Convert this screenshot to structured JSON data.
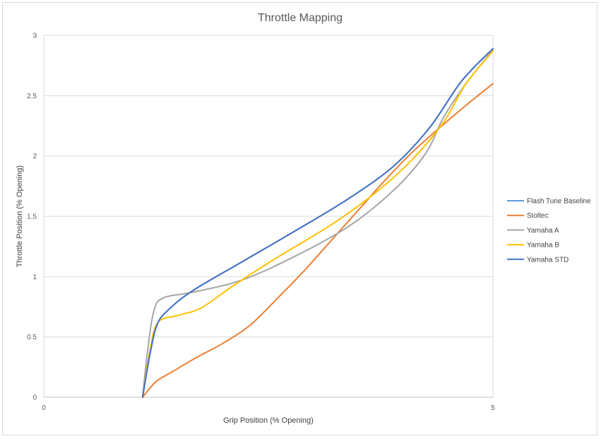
{
  "chart_data": {
    "type": "line",
    "title": "Throttle Mapping",
    "xlabel": "Grip Position (% Opening)",
    "ylabel": "Throttle Position (% Opening)",
    "xlim": [
      0,
      5
    ],
    "ylim": [
      0,
      3
    ],
    "x_ticks": [
      "0",
      "5"
    ],
    "y_ticks": [
      "0",
      "0.5",
      "1",
      "1.5",
      "2",
      "2.5",
      "3"
    ],
    "grid": "horizontal",
    "legend_position": "right",
    "series": [
      {
        "name": "Flash Tune Baseline",
        "color": "#5b9bd5",
        "points": [
          [
            1.1,
            0
          ],
          [
            1.18,
            0.35
          ],
          [
            1.26,
            0.6
          ],
          [
            1.38,
            0.72
          ],
          [
            1.65,
            0.88
          ],
          [
            2.2,
            1.12
          ],
          [
            2.8,
            1.38
          ],
          [
            3.4,
            1.65
          ],
          [
            3.9,
            1.92
          ],
          [
            4.3,
            2.24
          ],
          [
            4.65,
            2.62
          ],
          [
            5.0,
            2.89
          ]
        ]
      },
      {
        "name": "Stoltec",
        "color": "#ed7d31",
        "points": [
          [
            1.1,
            0
          ],
          [
            1.25,
            0.13
          ],
          [
            1.45,
            0.22
          ],
          [
            1.7,
            0.33
          ],
          [
            2.0,
            0.45
          ],
          [
            2.3,
            0.6
          ],
          [
            2.6,
            0.82
          ],
          [
            2.9,
            1.05
          ],
          [
            3.2,
            1.3
          ],
          [
            3.5,
            1.55
          ],
          [
            3.8,
            1.8
          ],
          [
            4.1,
            2.03
          ],
          [
            4.4,
            2.23
          ],
          [
            4.7,
            2.42
          ],
          [
            5.0,
            2.6
          ]
        ]
      },
      {
        "name": "Yamaha A",
        "color": "#a5a5a5",
        "points": [
          [
            1.1,
            0
          ],
          [
            1.15,
            0.35
          ],
          [
            1.22,
            0.7
          ],
          [
            1.32,
            0.82
          ],
          [
            1.65,
            0.87
          ],
          [
            2.2,
            0.97
          ],
          [
            2.8,
            1.17
          ],
          [
            3.4,
            1.42
          ],
          [
            3.9,
            1.72
          ],
          [
            4.25,
            2.02
          ],
          [
            4.45,
            2.32
          ],
          [
            4.7,
            2.6
          ],
          [
            5.0,
            2.88
          ]
        ]
      },
      {
        "name": "Yamaha B",
        "color": "#ffc000",
        "points": [
          [
            1.1,
            0
          ],
          [
            1.18,
            0.38
          ],
          [
            1.27,
            0.62
          ],
          [
            1.5,
            0.68
          ],
          [
            1.75,
            0.74
          ],
          [
            2.1,
            0.92
          ],
          [
            2.6,
            1.16
          ],
          [
            3.2,
            1.43
          ],
          [
            3.7,
            1.7
          ],
          [
            4.1,
            1.97
          ],
          [
            4.45,
            2.28
          ],
          [
            4.7,
            2.6
          ],
          [
            5.0,
            2.87
          ]
        ]
      },
      {
        "name": "Yamaha STD",
        "color": "#4472c4",
        "points": [
          [
            1.1,
            0
          ],
          [
            1.18,
            0.35
          ],
          [
            1.26,
            0.6
          ],
          [
            1.38,
            0.72
          ],
          [
            1.65,
            0.88
          ],
          [
            2.2,
            1.12
          ],
          [
            2.8,
            1.38
          ],
          [
            3.4,
            1.65
          ],
          [
            3.9,
            1.92
          ],
          [
            4.3,
            2.24
          ],
          [
            4.65,
            2.62
          ],
          [
            5.0,
            2.89
          ]
        ]
      }
    ]
  }
}
